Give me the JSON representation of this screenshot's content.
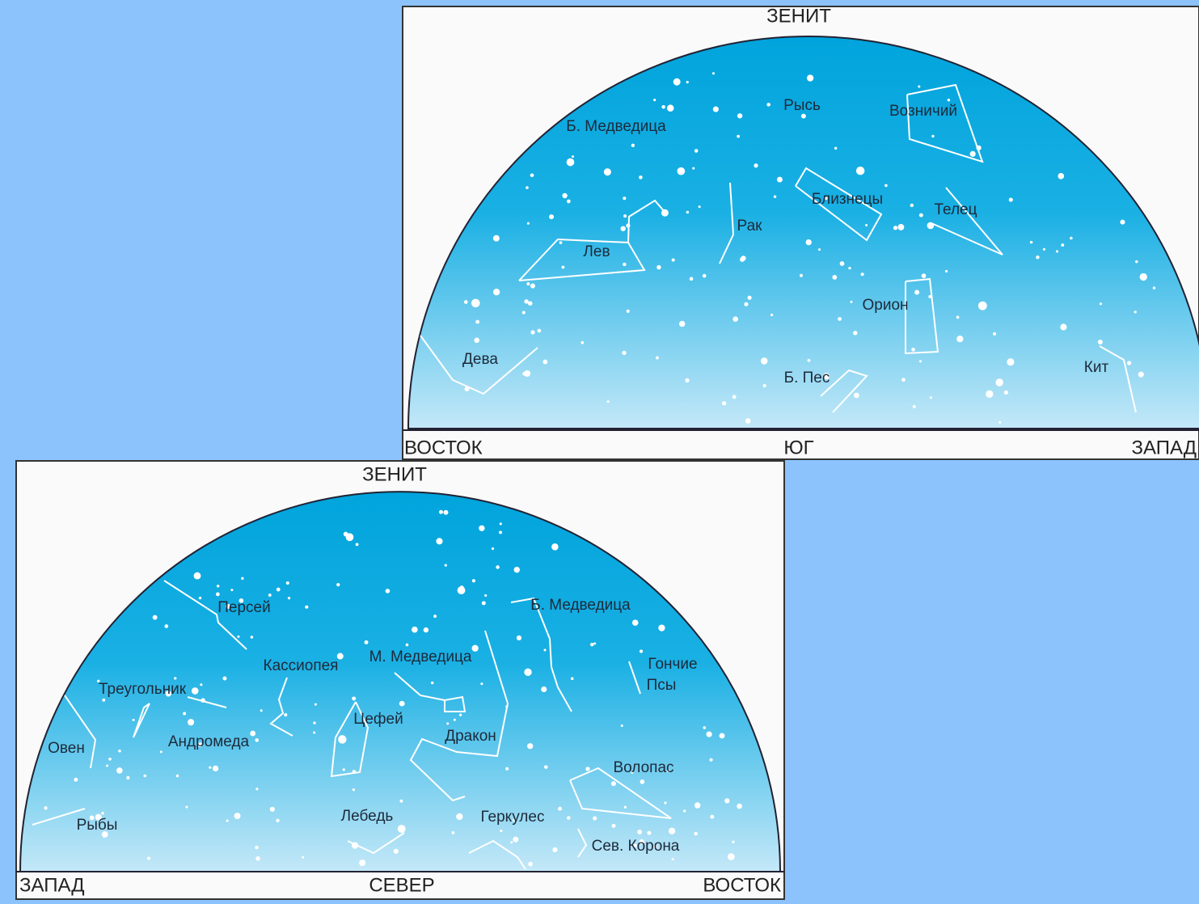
{
  "panels": [
    {
      "zenith": "ЗЕНИТ",
      "left": "ВОСТОК",
      "center": "ЮГ",
      "right": "ЗАПАД",
      "constellations": [
        "Б. Медведица",
        "Рысь",
        "Возничий",
        "Близнецы",
        "Телец",
        "Рак",
        "Лев",
        "Орион",
        "Дева",
        "Б. Пес",
        "Кит"
      ]
    },
    {
      "zenith": "ЗЕНИТ",
      "left": "ЗАПАД",
      "center": "СЕВЕР",
      "right": "ВОСТОК",
      "constellations": [
        "Персей",
        "Б. Медведица",
        "М. Медведица",
        "Кассиопея",
        "Гончие",
        "Псы",
        "Треугольник",
        "Цефей",
        "Дракон",
        "Овен",
        "Андромеда",
        "Волопас",
        "Рыбы",
        "Лебедь",
        "Геркулес",
        "Сев. Корона"
      ]
    }
  ]
}
